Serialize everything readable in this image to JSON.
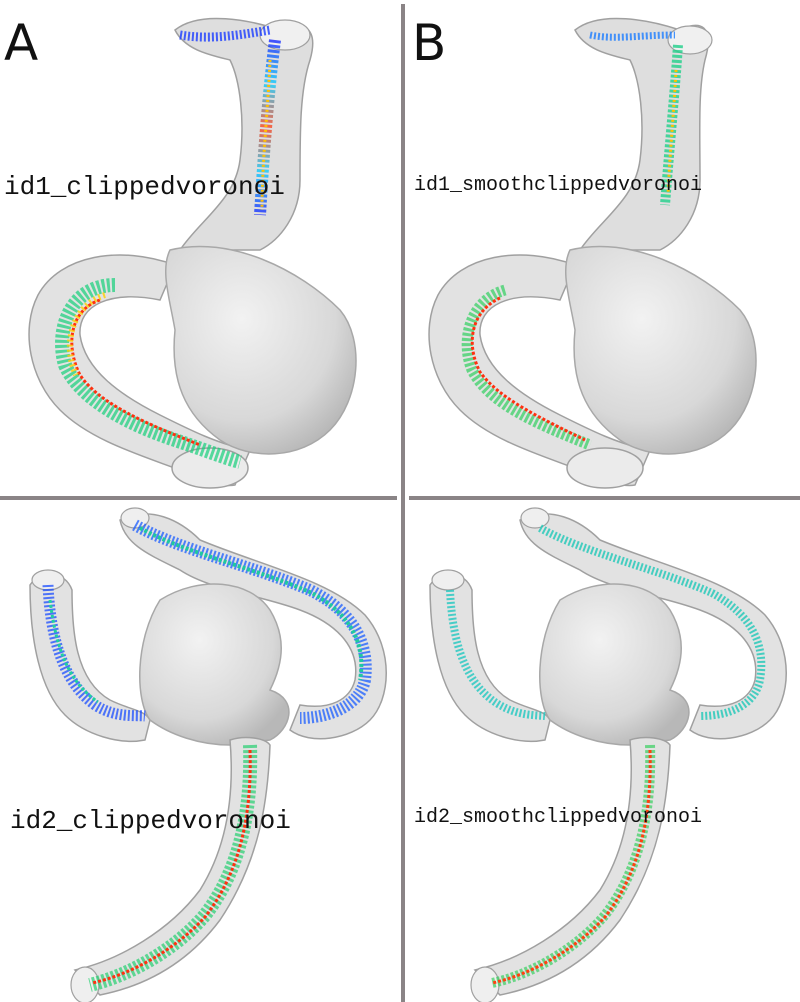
{
  "panels": [
    {
      "letter": "A"
    },
    {
      "letter": "B"
    }
  ],
  "captions": {
    "top_left": "id1_clippedvoronoi",
    "top_right": "id1_smoothclippedvoronoi",
    "bottom_left": "id2_clippedvoronoi",
    "bottom_right": "id2_smoothclippedvoronoi"
  },
  "colors": {
    "divider": "#8a8486",
    "vessel_fill": "#dcdcdc",
    "vessel_stroke": "#a8a8a8",
    "colormap": [
      "#0a1cff",
      "#00b8ff",
      "#26e07a",
      "#ffd21a",
      "#ff2a12"
    ]
  }
}
